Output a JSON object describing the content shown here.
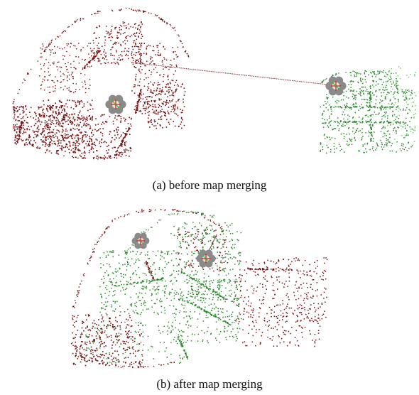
{
  "figure": {
    "panels": [
      {
        "id": "a",
        "caption": "(a) before map merging"
      },
      {
        "id": "b",
        "caption": "(b) after map merging"
      }
    ]
  },
  "colors": {
    "map_red": "#7a1010",
    "map_green": "#2a8a2a",
    "map_light_green": "#6ccf6c",
    "robot_body": "#8a8a8a",
    "robot_center": "#e0e0e0",
    "robot_axis_red": "#e02020",
    "robot_axis_green": "#20c020",
    "link_line": "#8b3a3a"
  }
}
